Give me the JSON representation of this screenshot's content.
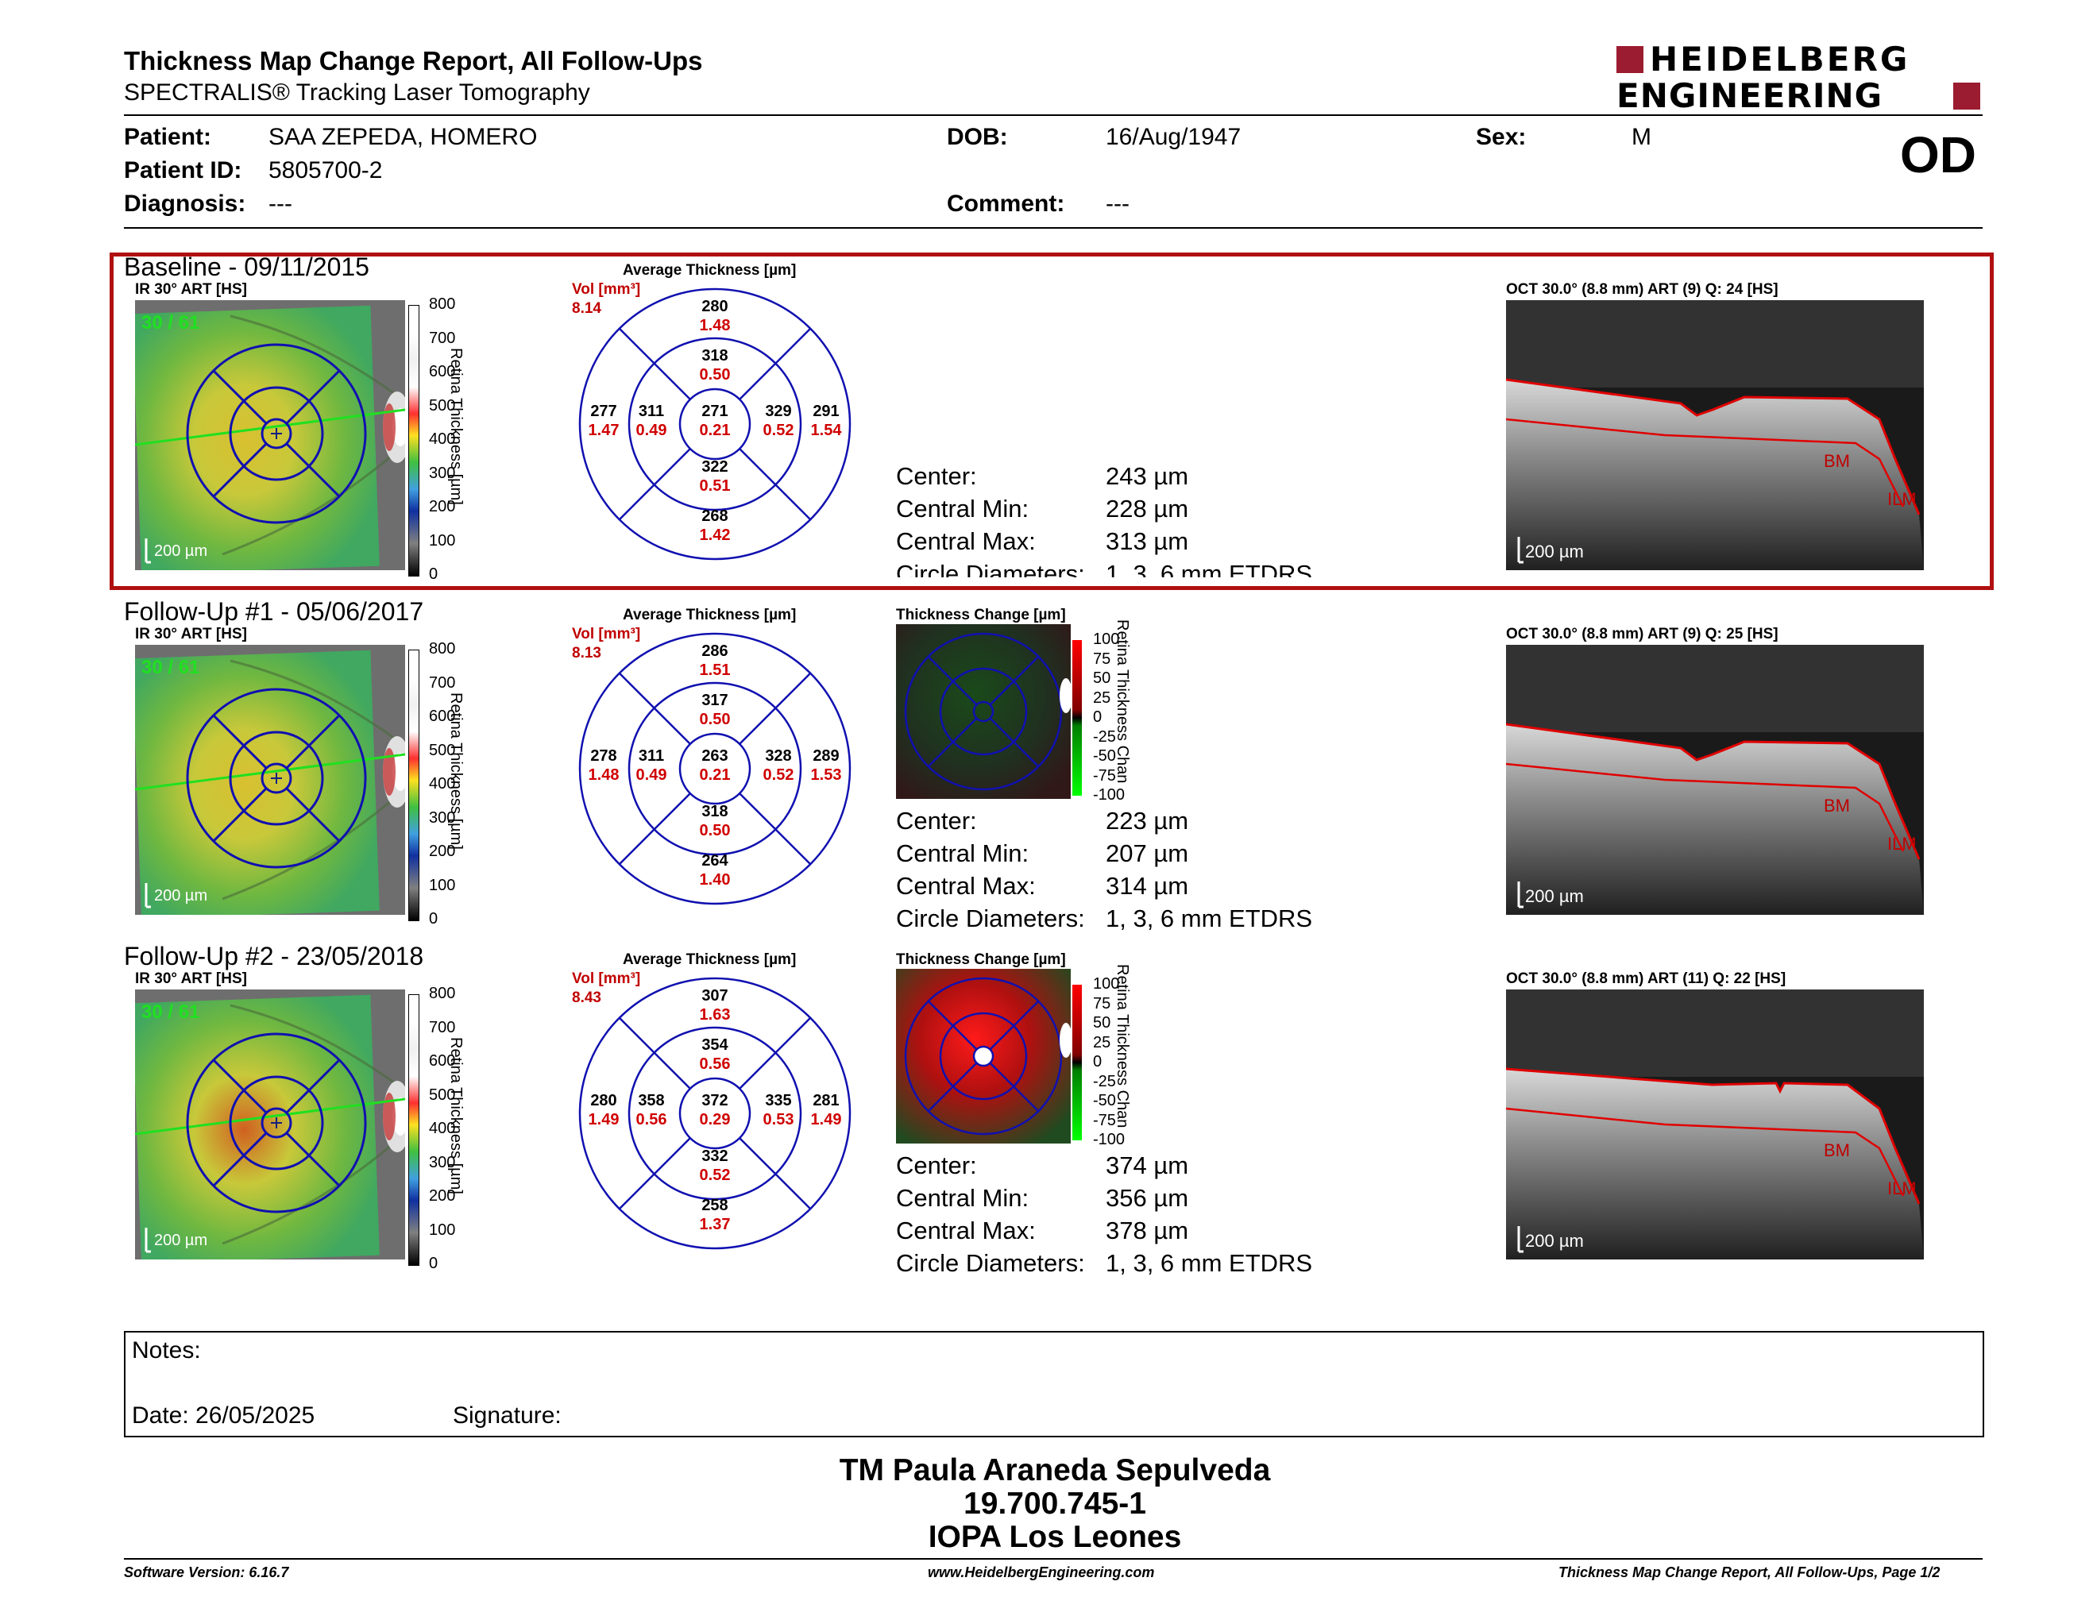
{
  "header": {
    "title": "Thickness Map Change Report, All Follow-Ups",
    "subtitle": "SPECTRALIS® Tracking Laser Tomography",
    "logo_line1": "HEIDELBERG",
    "logo_line2": "ENGINEERING",
    "eye": "OD"
  },
  "patient": {
    "patient_label": "Patient:",
    "patient_value": "SAA ZEPEDA, HOMERO",
    "id_label": "Patient ID:",
    "id_value": "5805700-2",
    "diag_label": "Diagnosis:",
    "diag_value": "---",
    "dob_label": "DOB:",
    "dob_value": "16/Aug/1947",
    "comment_label": "Comment:",
    "comment_value": "---",
    "sex_label": "Sex:",
    "sex_value": "M"
  },
  "common": {
    "ir_label": "IR 30° ART [HS]",
    "avg_label": "Average Thickness [µm]",
    "vol_label": "Vol [mm³]",
    "change_label": "Thickness Change [µm]",
    "quality": "30 / 61",
    "scale_bar": "200 µm",
    "colorbar_title": "Retina Thickness [µm]",
    "change_bar_title": "Retina Thickness Chan",
    "colorbar_ticks": [
      "800",
      "700",
      "600",
      "500",
      "400",
      "300",
      "200",
      "100",
      "0"
    ],
    "change_ticks": [
      "100",
      "75",
      "50",
      "25",
      "0",
      "-25",
      "-50",
      "-75",
      "-100"
    ],
    "bm_label": "BM",
    "ilm_label": "ILM",
    "center_label": "Center:",
    "cmin_label": "Central Min:",
    "cmax_label": "Central Max:",
    "circ_label": "Circle Diameters:",
    "circ_value": "1, 3, 6 mm ETDRS"
  },
  "exams": [
    {
      "title": "Baseline - 09/11/2015",
      "oct_label": "OCT 30.0° (8.8 mm) ART (9) Q: 24 [HS]",
      "vol_total": "8.14",
      "sectors": {
        "outer_sup": [
          "280",
          "1.48"
        ],
        "inner_sup": [
          "318",
          "0.50"
        ],
        "center": [
          "271",
          "0.21"
        ],
        "inner_inf": [
          "322",
          "0.51"
        ],
        "outer_inf": [
          "268",
          "1.42"
        ],
        "outer_left": [
          "277",
          "1.47"
        ],
        "inner_left": [
          "311",
          "0.49"
        ],
        "inner_right": [
          "329",
          "0.52"
        ],
        "outer_right": [
          "291",
          "1.54"
        ]
      },
      "center": "243 µm",
      "cmin": "228 µm",
      "cmax": "313 µm"
    },
    {
      "title": "Follow-Up #1 - 05/06/2017",
      "oct_label": "OCT 30.0° (8.8 mm) ART (9) Q: 25 [HS]",
      "vol_total": "8.13",
      "sectors": {
        "outer_sup": [
          "286",
          "1.51"
        ],
        "inner_sup": [
          "317",
          "0.50"
        ],
        "center": [
          "263",
          "0.21"
        ],
        "inner_inf": [
          "318",
          "0.50"
        ],
        "outer_inf": [
          "264",
          "1.40"
        ],
        "outer_left": [
          "278",
          "1.48"
        ],
        "inner_left": [
          "311",
          "0.49"
        ],
        "inner_right": [
          "328",
          "0.52"
        ],
        "outer_right": [
          "289",
          "1.53"
        ]
      },
      "center": "223 µm",
      "cmin": "207 µm",
      "cmax": "314 µm"
    },
    {
      "title": "Follow-Up #2 - 23/05/2018",
      "oct_label": "OCT 30.0° (8.8 mm) ART (11) Q: 22 [HS]",
      "vol_total": "8.43",
      "sectors": {
        "outer_sup": [
          "307",
          "1.63"
        ],
        "inner_sup": [
          "354",
          "0.56"
        ],
        "center": [
          "372",
          "0.29"
        ],
        "inner_inf": [
          "332",
          "0.52"
        ],
        "outer_inf": [
          "258",
          "1.37"
        ],
        "outer_left": [
          "280",
          "1.49"
        ],
        "inner_left": [
          "358",
          "0.56"
        ],
        "inner_right": [
          "335",
          "0.53"
        ],
        "outer_right": [
          "281",
          "1.49"
        ]
      },
      "center": "374 µm",
      "cmin": "356 µm",
      "cmax": "378 µm"
    }
  ],
  "notes": {
    "notes_label": "Notes:",
    "date_label": "Date: 26/05/2025",
    "signature_label": "Signature:"
  },
  "signature": {
    "name": "TM Paula Araneda Sepulveda",
    "id": "19.700.745-1",
    "org": "IOPA Los Leones"
  },
  "footer": {
    "software": "Software Version: 6.16.7",
    "website": "www.HeidelbergEngineering.com",
    "page": "Thickness Map Change Report, All Follow-Ups, Page 1/2"
  },
  "colors": {
    "frame_red": "#b01010",
    "logo_red": "#9b1b30",
    "grid_blue": "#1010b0",
    "value_red": "#d00000"
  }
}
